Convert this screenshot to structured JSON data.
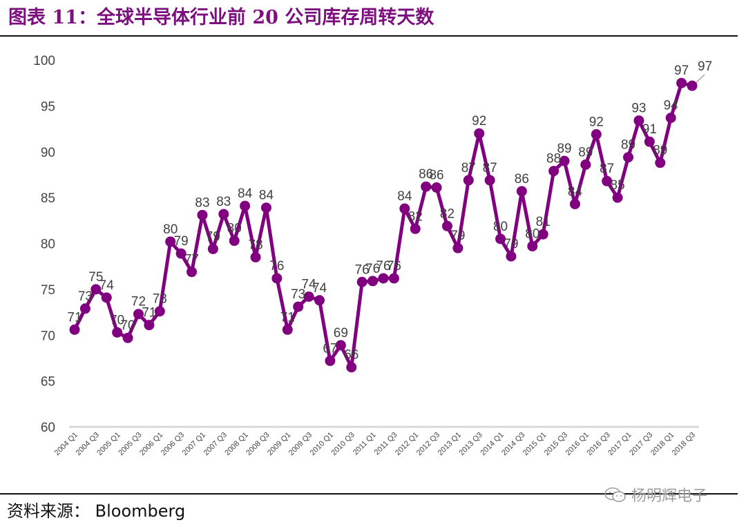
{
  "header": {
    "title": "图表 11：全球半导体行业前 20 公司库存周转天数"
  },
  "footer": {
    "source": "资料来源：  Bloomberg",
    "watermark": "杨明辉电子"
  },
  "colors": {
    "series": "#800080",
    "title": "#7b0f7e",
    "axis": "#d9d9d9"
  },
  "chart_data": {
    "type": "line",
    "title": "图表 11：全球半导体行业前 20 公司库存周转天数",
    "xlabel": "",
    "ylabel": "",
    "ylim": [
      60,
      100
    ],
    "yticks": [
      60,
      65,
      70,
      75,
      80,
      85,
      90,
      95,
      100
    ],
    "grid": false,
    "x_tick_labels": [
      "2004 Q1",
      "2004 Q3",
      "2005 Q1",
      "2005 Q3",
      "2006 Q1",
      "2006 Q3",
      "2007 Q1",
      "2007 Q3",
      "2008 Q1",
      "2008 Q3",
      "2009 Q1",
      "2009 Q3",
      "2010 Q1",
      "2010 Q3",
      "2011 Q1",
      "2011 Q3",
      "2012 Q1",
      "2012 Q3",
      "2013 Q1",
      "2013 Q3",
      "2014 Q1",
      "2014 Q3",
      "2015 Q1",
      "2015 Q3",
      "2016 Q1",
      "2016 Q3",
      "2017 Q1",
      "2017 Q3",
      "2018 Q1",
      "2018 Q3"
    ],
    "series": [
      {
        "values": [
          70.6,
          72.9,
          75.0,
          74.1,
          70.3,
          69.7,
          72.3,
          71.1,
          72.6,
          80.2,
          78.9,
          76.9,
          83.1,
          79.4,
          83.2,
          80.3,
          84.1,
          78.5,
          83.9,
          76.2,
          70.6,
          73.1,
          74.2,
          73.8,
          67.2,
          68.9,
          66.5,
          75.8,
          75.9,
          76.2,
          76.2,
          83.8,
          81.6,
          86.2,
          86.1,
          81.9,
          79.5,
          86.9,
          92.0,
          86.9,
          80.5,
          78.6,
          85.7,
          79.7,
          81.0,
          87.9,
          89.0,
          84.3,
          88.6,
          91.9,
          86.8,
          85.0,
          89.4,
          93.4,
          91.1,
          88.8,
          93.7,
          97.5,
          97.2
        ],
        "labels": [
          "71",
          "73",
          "75",
          "74",
          "70",
          "70",
          "72",
          "71",
          "73",
          "80",
          "79",
          "77",
          "83",
          "79",
          "83",
          "80",
          "84",
          "78",
          "84",
          "76",
          "71",
          "73",
          "74",
          "74",
          "67",
          "69",
          "66",
          "76",
          "76",
          "76",
          "76",
          "84",
          "82",
          "86",
          "86",
          "82",
          "79",
          "87",
          "92",
          "87",
          "80",
          "79",
          "86",
          "80",
          "81",
          "88",
          "89",
          "84",
          "89",
          "92",
          "87",
          "85",
          "89",
          "93",
          "91",
          "89",
          "94",
          "97",
          "97"
        ]
      }
    ]
  }
}
